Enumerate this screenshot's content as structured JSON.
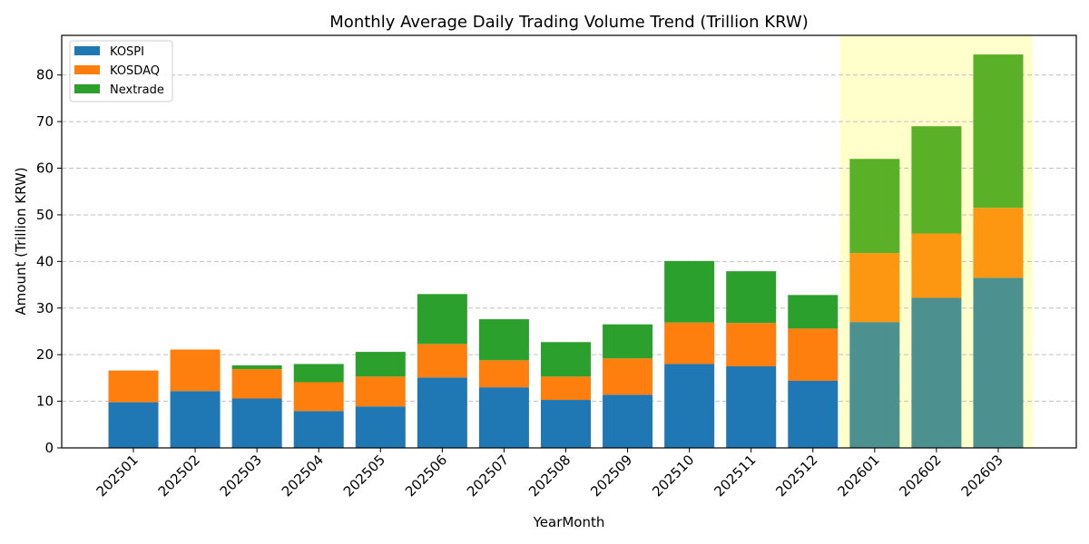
{
  "chart_data": {
    "type": "bar",
    "stacked": true,
    "title": "Monthly Average Daily Trading Volume Trend (Trillion KRW)",
    "xlabel": "YearMonth",
    "ylabel": "Amount (Trillion KRW)",
    "ylim": [
      0,
      88.5
    ],
    "yticks": [
      0,
      10,
      20,
      30,
      40,
      50,
      60,
      70,
      80
    ],
    "grid": "y-dashed",
    "legend_position": "top-left",
    "categories": [
      "202501",
      "202502",
      "202503",
      "202504",
      "202505",
      "202506",
      "202507",
      "202508",
      "202509",
      "202510",
      "202511",
      "202512",
      "202601",
      "202602",
      "202603"
    ],
    "series": [
      {
        "name": "KOSPI",
        "color": "#1f77b4",
        "highlight_color": "#4c918f",
        "values": [
          9.8,
          12.2,
          10.6,
          7.9,
          8.9,
          15.1,
          13.0,
          10.3,
          11.4,
          18.0,
          17.5,
          14.4,
          27.0,
          32.2,
          36.5
        ]
      },
      {
        "name": "KOSDAQ",
        "color": "#ff7f0e",
        "highlight_color": "#fd9712",
        "values": [
          6.8,
          8.9,
          6.3,
          6.2,
          6.4,
          7.2,
          5.8,
          5.0,
          7.8,
          8.9,
          9.3,
          11.2,
          14.8,
          13.8,
          15.0
        ]
      },
      {
        "name": "Nextrade",
        "color": "#2ca02c",
        "highlight_color": "#5ab127",
        "values": [
          0.0,
          0.0,
          0.8,
          3.9,
          5.3,
          10.7,
          8.8,
          7.4,
          7.3,
          13.2,
          11.1,
          7.2,
          20.2,
          23.0,
          32.9
        ]
      }
    ],
    "highlight": {
      "from": "202601",
      "to": "202603",
      "color": "#ffffcc"
    }
  }
}
